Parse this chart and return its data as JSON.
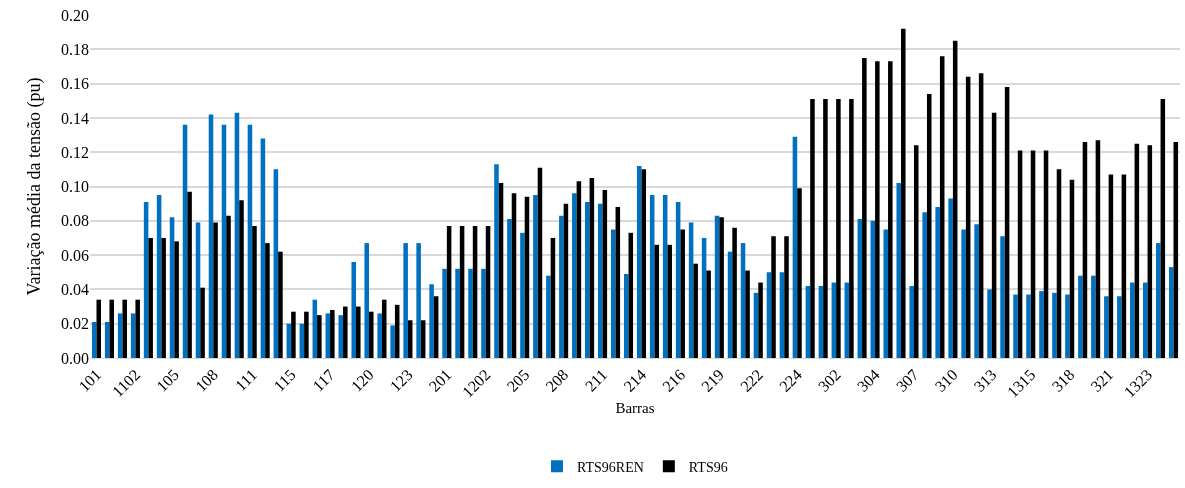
{
  "chart_data": {
    "type": "bar",
    "xlabel": "Barras",
    "ylabel": "Variação média da tensão (pu)",
    "categories": [
      "101",
      null,
      null,
      "1102",
      null,
      null,
      "105",
      null,
      null,
      "108",
      null,
      null,
      "111",
      null,
      null,
      "115",
      null,
      null,
      "117",
      null,
      null,
      "120",
      null,
      null,
      "123",
      null,
      null,
      "201",
      null,
      null,
      "1202",
      null,
      null,
      "205",
      null,
      null,
      "208",
      null,
      null,
      "211",
      null,
      null,
      "214",
      null,
      null,
      "216",
      null,
      null,
      "219",
      null,
      null,
      "222",
      null,
      null,
      "224",
      null,
      null,
      "302",
      null,
      null,
      "304",
      null,
      null,
      "307",
      null,
      null,
      "310",
      null,
      null,
      "313",
      null,
      null,
      "1315",
      null,
      null,
      "318",
      null,
      null,
      "321",
      null,
      null,
      "1323",
      null,
      null
    ],
    "series": [
      {
        "name": "RTS96REN",
        "color": "#0070c0",
        "values": [
          0.021,
          0.021,
          0.026,
          0.026,
          0.091,
          0.095,
          0.082,
          0.136,
          0.079,
          0.142,
          0.136,
          0.143,
          0.136,
          0.128,
          0.11,
          0.02,
          0.02,
          0.034,
          0.026,
          0.025,
          0.056,
          0.067,
          0.026,
          0.019,
          0.067,
          0.067,
          0.043,
          0.052,
          0.052,
          0.052,
          0.052,
          0.113,
          0.081,
          0.073,
          0.095,
          0.048,
          0.083,
          0.096,
          0.091,
          0.09,
          0.075,
          0.049,
          0.112,
          0.095,
          0.095,
          0.091,
          0.079,
          0.07,
          0.083,
          0.062,
          0.067,
          0.038,
          0.05,
          0.05,
          0.129,
          0.042,
          0.042,
          0.044,
          0.044,
          0.081,
          0.08,
          0.075,
          0.102,
          0.042,
          0.085,
          0.088,
          0.093,
          0.075,
          0.078,
          0.04,
          0.071,
          0.037,
          0.037,
          0.039,
          0.038,
          0.037,
          0.048,
          0.048,
          0.036,
          0.036,
          0.044,
          0.044,
          0.067,
          0.053
        ]
      },
      {
        "name": "RTS96",
        "color": "#000000",
        "values": [
          0.034,
          0.034,
          0.034,
          0.034,
          0.07,
          0.07,
          0.068,
          0.097,
          0.041,
          0.079,
          0.083,
          0.092,
          0.077,
          0.067,
          0.062,
          0.027,
          0.027,
          0.025,
          0.028,
          0.03,
          0.03,
          0.027,
          0.034,
          0.031,
          0.022,
          0.022,
          0.036,
          0.077,
          0.077,
          0.077,
          0.077,
          0.102,
          0.096,
          0.094,
          0.111,
          0.07,
          0.09,
          0.103,
          0.105,
          0.098,
          0.088,
          0.073,
          0.11,
          0.066,
          0.066,
          0.075,
          0.055,
          0.051,
          0.082,
          0.076,
          0.051,
          0.044,
          0.071,
          0.071,
          0.099,
          0.151,
          0.151,
          0.151,
          0.151,
          0.175,
          0.173,
          0.173,
          0.192,
          0.124,
          0.154,
          0.176,
          0.185,
          0.164,
          0.166,
          0.143,
          0.158,
          0.121,
          0.121,
          0.121,
          0.11,
          0.104,
          0.126,
          0.127,
          0.107,
          0.107,
          0.125,
          0.124,
          0.151,
          0.126
        ]
      }
    ],
    "ylim": [
      0,
      0.2
    ],
    "yticks": [
      {
        "value": 0,
        "label": "0.00"
      },
      {
        "value": 0.02,
        "label": "0.02"
      },
      {
        "value": 0.04,
        "label": "0.04"
      },
      {
        "value": 0.06,
        "label": "0.06"
      },
      {
        "value": 0.08,
        "label": "0.08"
      },
      {
        "value": 0.1,
        "label": "0.10"
      },
      {
        "value": 0.12,
        "label": "0.12"
      },
      {
        "value": 0.14,
        "label": "0.14"
      },
      {
        "value": 0.16,
        "label": "0.16"
      },
      {
        "value": 0.18,
        "label": "0.18"
      },
      {
        "value": 0.2,
        "label": "0.20"
      }
    ],
    "grid": "y",
    "legend": "bottom"
  }
}
